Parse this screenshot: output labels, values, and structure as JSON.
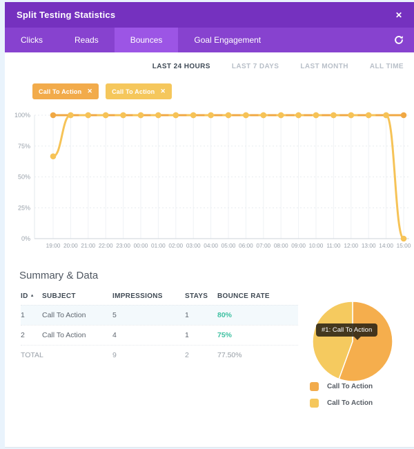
{
  "window": {
    "title": "Split Testing Statistics",
    "close_icon": "✕"
  },
  "tabs": [
    {
      "label": "Clicks",
      "active": false
    },
    {
      "label": "Reads",
      "active": false
    },
    {
      "label": "Bounces",
      "active": true
    },
    {
      "label": "Goal Engagement",
      "active": false
    }
  ],
  "time_filters": [
    {
      "label": "LAST 24 HOURS",
      "active": true
    },
    {
      "label": "LAST 7 DAYS",
      "active": false
    },
    {
      "label": "LAST MONTH",
      "active": false
    },
    {
      "label": "ALL TIME",
      "active": false
    }
  ],
  "filter_chips": [
    {
      "label": "Call To Action",
      "close": "✕",
      "color": "#f2ab4b"
    },
    {
      "label": "Call To Action",
      "close": "✕",
      "color": "#f5c75c"
    }
  ],
  "chart_data": [
    {
      "type": "line",
      "x": [
        "19:00",
        "20:00",
        "21:00",
        "22:00",
        "23:00",
        "00:00",
        "01:00",
        "02:00",
        "03:00",
        "04:00",
        "05:00",
        "06:00",
        "07:00",
        "08:00",
        "09:00",
        "10:00",
        "11:00",
        "12:00",
        "13:00",
        "14:00",
        "15:00"
      ],
      "y_ticks": [
        "100%",
        "75%",
        "50%",
        "25%",
        "0%"
      ],
      "ylim": [
        0,
        100
      ],
      "grid": true,
      "legend_position": "none",
      "series": [
        {
          "name": "Call To Action",
          "color": "#f0a844",
          "values": [
            100,
            100,
            100,
            100,
            100,
            100,
            100,
            100,
            100,
            100,
            100,
            100,
            100,
            100,
            100,
            100,
            100,
            100,
            100,
            100,
            100
          ]
        },
        {
          "name": "Call To Action",
          "color": "#f6c357",
          "values": [
            66.67,
            100,
            100,
            100,
            100,
            100,
            100,
            100,
            100,
            100,
            100,
            100,
            100,
            100,
            100,
            100,
            100,
            100,
            100,
            100,
            0
          ]
        }
      ]
    },
    {
      "type": "pie",
      "labels": [
        "Call To Action",
        "Call To Action"
      ],
      "values": [
        5,
        4
      ],
      "colors": [
        "#f5ae4d",
        "#f5ca5f"
      ],
      "tooltip": "#1: Call To Action"
    }
  ],
  "summary": {
    "heading": "Summary & Data",
    "table": {
      "headers": [
        "ID",
        "SUBJECT",
        "IMPRESSIONS",
        "STAYS",
        "BOUNCE RATE"
      ],
      "sort_icon": "▲",
      "rows": [
        {
          "id": "1",
          "subject": "Call To Action",
          "impressions": "5",
          "stays": "1",
          "bounce_rate": "80%"
        },
        {
          "id": "2",
          "subject": "Call To Action",
          "impressions": "4",
          "stays": "1",
          "bounce_rate": "75%"
        }
      ],
      "total": {
        "label": "TOTAL",
        "impressions": "9",
        "stays": "2",
        "bounce_rate": "77.50%"
      }
    }
  },
  "legend": [
    {
      "label": "Call To Action",
      "color": "#f2ab4b"
    },
    {
      "label": "Call To Action",
      "color": "#f5c75c"
    }
  ],
  "colors": {
    "header_purple": "#7531bf",
    "tabbar_purple": "#8742cf",
    "active_tab_purple": "#9c55e5",
    "teal_rate": "#3ec0a1",
    "page_background": "#e9f3fc"
  }
}
